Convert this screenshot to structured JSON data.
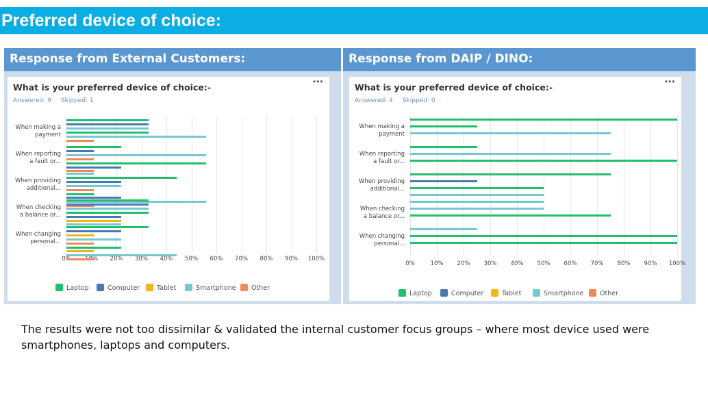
{
  "slide_title": "Preferred device of choice:",
  "panels": [
    {
      "header": "Response from External Customers:"
    },
    {
      "header": "Response from DAIP / DINO:"
    }
  ],
  "footer_text": "The results were not too dissimilar & validated the internal customer focus groups – where most device used were smartphones, laptops and computers.",
  "colors": {
    "Laptop": "#1fbf6e",
    "Computer": "#4a78b5",
    "Tablet": "#f2b51a",
    "Smartphone": "#74c8cf",
    "Other": "#f08a55"
  },
  "chart_data": [
    {
      "type": "bar",
      "orientation": "horizontal",
      "title": "What is your preferred device of choice:-",
      "answered": "Answered: 9",
      "skipped": "Skipped: 1",
      "categories": [
        "When making a payment",
        "When reporting a fault or...",
        "When providing additional...",
        "When checking a balance or...",
        "When changing personal..."
      ],
      "category_lines": [
        [
          "When making a",
          "payment"
        ],
        [
          "When reporting",
          "a fault or..."
        ],
        [
          "When providing",
          "additional..."
        ],
        [
          "When checking",
          "a balance or..."
        ],
        [
          "When changing",
          "personal..."
        ]
      ],
      "x_ticks": [
        "0%",
        "10%",
        "20%",
        "30%",
        "40%",
        "50%",
        "60%",
        "70%",
        "80%",
        "90%",
        "100%"
      ],
      "xlim": [
        0,
        100
      ],
      "legend": [
        "Laptop",
        "Computer",
        "Tablet",
        "Smartphone",
        "Other"
      ],
      "legend_position": "bottom",
      "bars": [
        {
          "cat": 0,
          "series": "Laptop",
          "value": 33
        },
        {
          "cat": 0,
          "series": "Computer",
          "value": 33
        },
        {
          "cat": 0,
          "series": "Smartphone",
          "value": 33
        },
        {
          "cat": 0,
          "series": "Laptop",
          "value": 33
        },
        {
          "cat": 0,
          "series": "Smartphone",
          "value": 56
        },
        {
          "cat": 0,
          "series": "Other",
          "value": 11
        },
        {
          "cat": 1,
          "series": "Laptop",
          "value": 22
        },
        {
          "cat": 1,
          "series": "Computer",
          "value": 11
        },
        {
          "cat": 1,
          "series": "Smartphone",
          "value": 56
        },
        {
          "cat": 1,
          "series": "Other",
          "value": 11
        },
        {
          "cat": 1,
          "series": "Laptop",
          "value": 56
        },
        {
          "cat": 1,
          "series": "Computer",
          "value": 22
        },
        {
          "cat": 1,
          "series": "Other",
          "value": 11
        },
        {
          "cat": 2,
          "series": "Smartphone",
          "value": 11
        },
        {
          "cat": 2,
          "series": "Laptop",
          "value": 44
        },
        {
          "cat": 2,
          "series": "Computer",
          "value": 22
        },
        {
          "cat": 2,
          "series": "Smartphone",
          "value": 22
        },
        {
          "cat": 2,
          "series": "Other",
          "value": 11
        },
        {
          "cat": 2,
          "series": "Laptop",
          "value": 11
        },
        {
          "cat": 2,
          "series": "Computer",
          "value": 22
        },
        {
          "cat": 2,
          "series": "Smartphone",
          "value": 56
        },
        {
          "cat": 2,
          "series": "Other",
          "value": 11
        },
        {
          "cat": 3,
          "series": "Laptop",
          "value": 33
        },
        {
          "cat": 3,
          "series": "Computer",
          "value": 33
        },
        {
          "cat": 3,
          "series": "Smartphone",
          "value": 33
        },
        {
          "cat": 3,
          "series": "Laptop",
          "value": 33
        },
        {
          "cat": 3,
          "series": "Computer",
          "value": 22
        },
        {
          "cat": 3,
          "series": "Tablet",
          "value": 22
        },
        {
          "cat": 3,
          "series": "Smartphone",
          "value": 22
        },
        {
          "cat": 4,
          "series": "Laptop",
          "value": 33
        },
        {
          "cat": 4,
          "series": "Computer",
          "value": 22
        },
        {
          "cat": 4,
          "series": "Tablet",
          "value": 11
        },
        {
          "cat": 4,
          "series": "Smartphone",
          "value": 22
        },
        {
          "cat": 4,
          "series": "Other",
          "value": 11
        },
        {
          "cat": 4,
          "series": "Laptop",
          "value": 22
        },
        {
          "cat": 4,
          "series": "Tablet",
          "value": 11
        },
        {
          "cat": 4,
          "series": "Smartphone",
          "value": 44
        },
        {
          "cat": 4,
          "series": "Other",
          "value": 11
        }
      ]
    },
    {
      "type": "bar",
      "orientation": "horizontal",
      "title": "What is your preferred device of choice:-",
      "answered": "Answered: 4",
      "skipped": "Skipped: 0",
      "categories": [
        "When making a payment",
        "When reporting a fault or...",
        "When providing additional...",
        "When checking a balance or...",
        "When changing personal..."
      ],
      "category_lines": [
        [
          "When making a",
          "payment"
        ],
        [
          "When reporting",
          "a fault or..."
        ],
        [
          "When providing",
          "additional..."
        ],
        [
          "When checking",
          "a balance or..."
        ],
        [
          "When changing",
          "personal..."
        ]
      ],
      "x_ticks": [
        "0%",
        "10%",
        "20%",
        "30%",
        "40%",
        "50%",
        "60%",
        "70%",
        "80%",
        "90%",
        "100%"
      ],
      "xlim": [
        0,
        100
      ],
      "legend": [
        "Laptop",
        "Computer",
        "Tablet",
        "Smartphone",
        "Other"
      ],
      "legend_position": "bottom",
      "bars": [
        {
          "cat": 0,
          "series": "Laptop",
          "value": 100
        },
        {
          "cat": 0,
          "series": "Laptop",
          "value": 25
        },
        {
          "cat": 0,
          "series": "Smartphone",
          "value": 75
        },
        {
          "cat": 1,
          "series": "Laptop",
          "value": 25
        },
        {
          "cat": 1,
          "series": "Smartphone",
          "value": 75
        },
        {
          "cat": 1,
          "series": "Laptop",
          "value": 100
        },
        {
          "cat": 2,
          "series": "Laptop",
          "value": 75
        },
        {
          "cat": 2,
          "series": "Computer",
          "value": 25
        },
        {
          "cat": 2,
          "series": "Laptop",
          "value": 50
        },
        {
          "cat": 2,
          "series": "Smartphone",
          "value": 50
        },
        {
          "cat": 3,
          "series": "Smartphone",
          "value": 50
        },
        {
          "cat": 3,
          "series": "Smartphone",
          "value": 50
        },
        {
          "cat": 3,
          "series": "Laptop",
          "value": 75
        },
        {
          "cat": 4,
          "series": "Smartphone",
          "value": 25
        },
        {
          "cat": 4,
          "series": "Laptop",
          "value": 100
        },
        {
          "cat": 4,
          "series": "Laptop",
          "value": 100
        }
      ]
    }
  ]
}
